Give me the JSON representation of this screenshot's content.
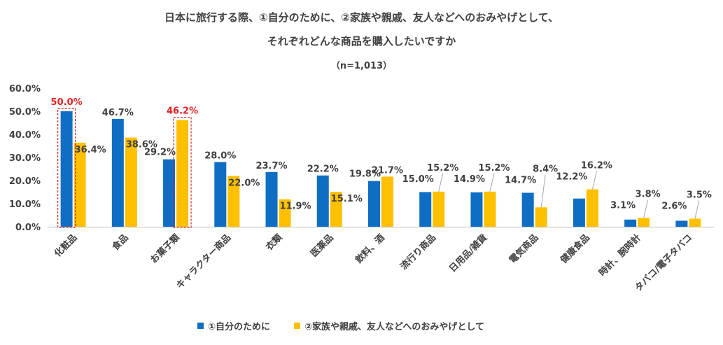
{
  "chart_data": {
    "type": "bar",
    "title_line1": "日本に旅行する際、①自分のために、②家族や親戚、友人などへのおみやげとして、",
    "title_line2": "それぞれどんな商品を購入したいですか",
    "subtitle": "（n=1,013）",
    "categories": [
      "化粧品",
      "食品",
      "お菓子類",
      "キャラクター商品",
      "衣類",
      "医薬品",
      "飲料、酒",
      "流行り商品",
      "日用品/雑貨",
      "電気商品",
      "健康食品",
      "時計、腕時計",
      "タバコ/電子タバコ"
    ],
    "series": [
      {
        "name": "①自分のために",
        "color": "#0F6EC3",
        "values": [
          50.0,
          46.7,
          29.2,
          28.0,
          23.7,
          22.2,
          19.8,
          15.0,
          14.9,
          14.7,
          12.2,
          3.1,
          2.6
        ],
        "labels": [
          "50.0%",
          "46.7%",
          "29.2%",
          "28.0%",
          "23.7%",
          "22.2%",
          "19.8%",
          "15.0%",
          "14.9%",
          "14.7%",
          "12.2%",
          "3.1%",
          "2.6%"
        ]
      },
      {
        "name": "②家族や親戚、友人などへのおみやげとして",
        "color": "#FFC000",
        "values": [
          36.4,
          38.6,
          46.2,
          22.0,
          11.9,
          15.1,
          21.7,
          15.2,
          15.2,
          8.4,
          16.2,
          3.8,
          3.5
        ],
        "labels": [
          "36.4%",
          "38.6%",
          "46.2%",
          "22.0%",
          "11.9%",
          "15.1%",
          "21.7%",
          "15.2%",
          "15.2%",
          "8.4%",
          "16.2%",
          "3.8%",
          "3.5%"
        ]
      }
    ],
    "highlights": [
      {
        "category": "化粧品",
        "series": "①自分のために"
      },
      {
        "category": "お菓子類",
        "series": "②家族や親戚、友人などへのおみやげとして"
      }
    ],
    "highlight_color": "#E02020",
    "y_ticks": [
      "0.0%",
      "10.0%",
      "20.0%",
      "30.0%",
      "40.0%",
      "50.0%",
      "60.0%"
    ],
    "ylim": [
      0,
      60
    ],
    "gridlines": false,
    "legend_position": "bottom"
  }
}
